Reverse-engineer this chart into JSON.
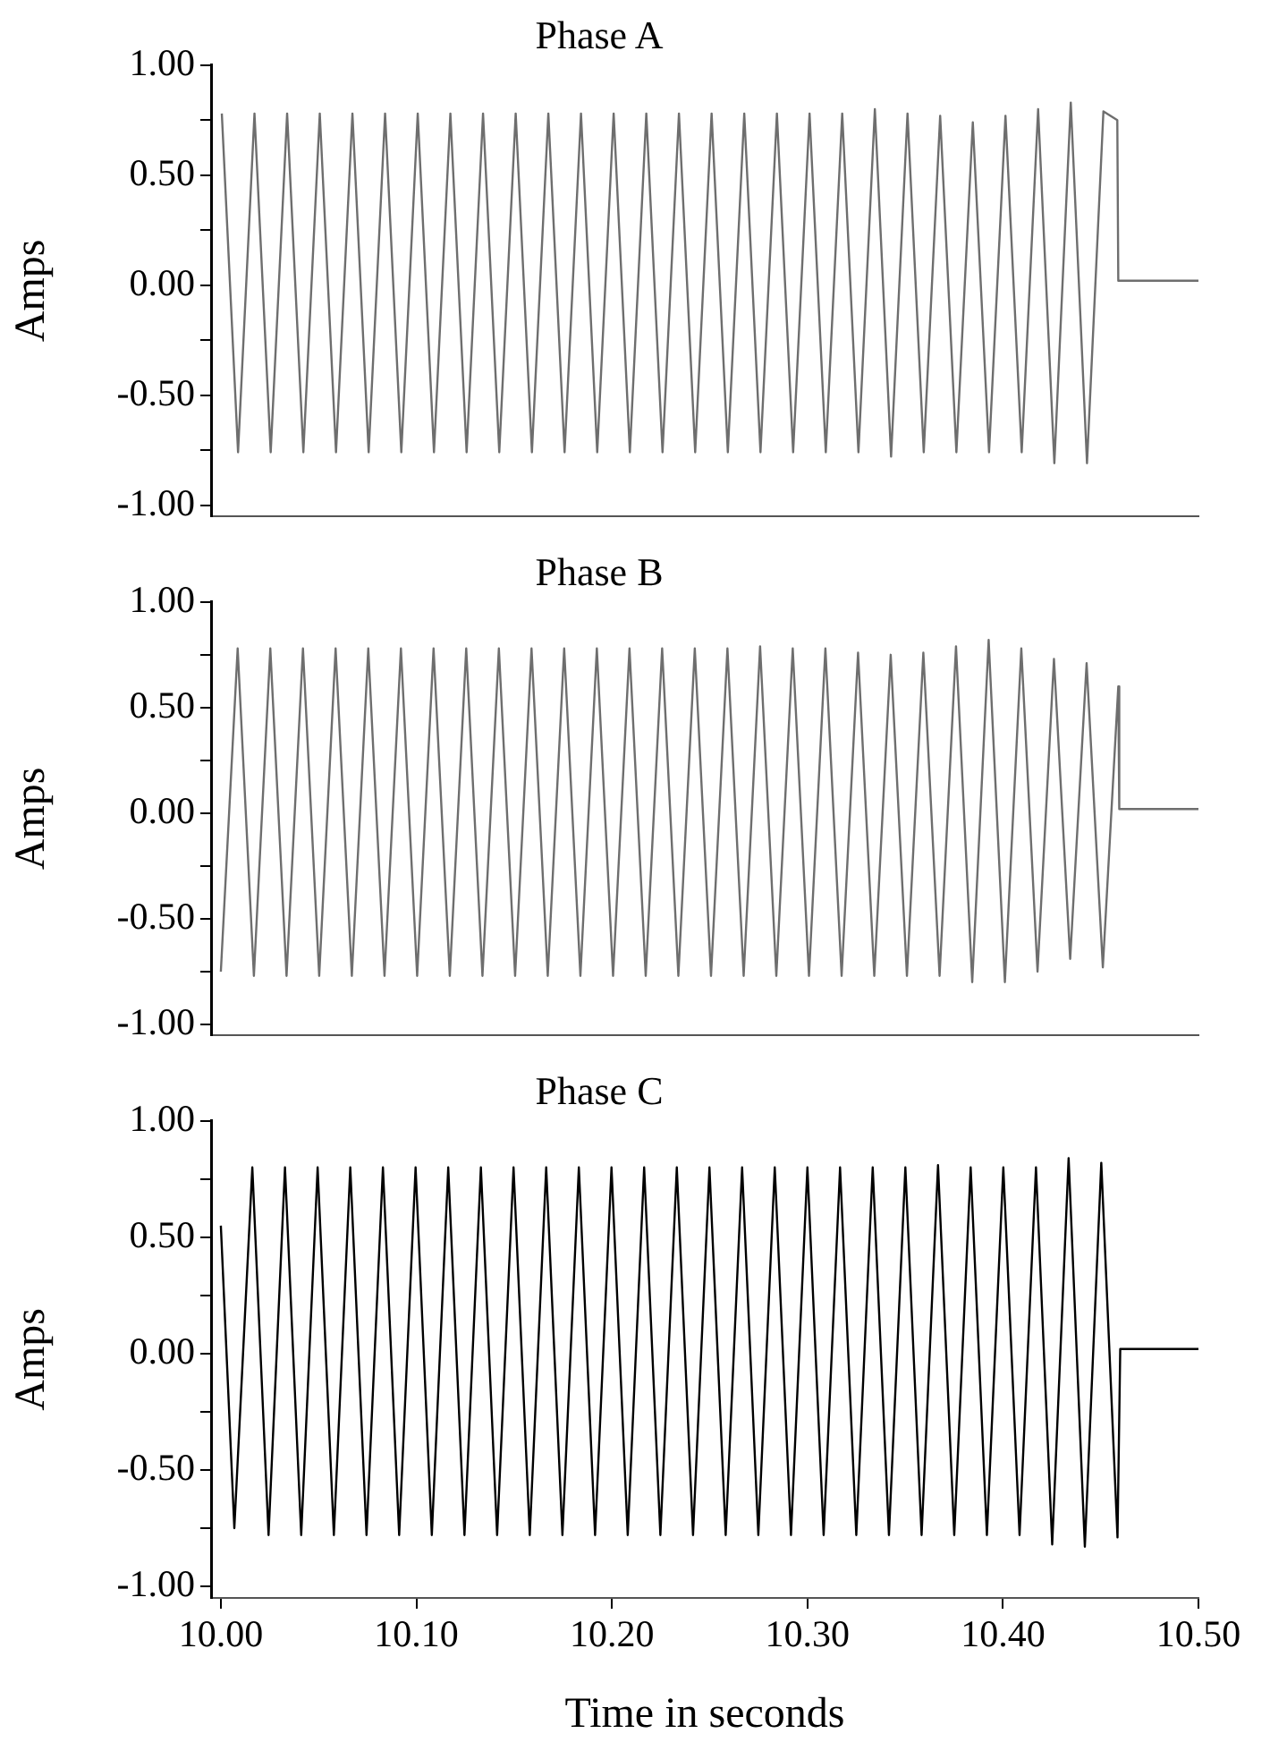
{
  "chart_data": [
    {
      "type": "line",
      "title": "Phase A",
      "ylabel": "Amps",
      "xlim": [
        9.995,
        10.5
      ],
      "ylim": [
        -1.05,
        1.0
      ],
      "yticks": [
        {
          "value": -1,
          "label": "-1.00"
        },
        {
          "value": -0.75,
          "label": null
        },
        {
          "value": -0.5,
          "label": "-0.50"
        },
        {
          "value": -0.25,
          "label": null
        },
        {
          "value": 0,
          "label": "0.00"
        },
        {
          "value": 0.25,
          "label": null
        },
        {
          "value": 0.5,
          "label": "0.50"
        },
        {
          "value": 0.75,
          "label": null
        },
        {
          "value": 1,
          "label": "1.00"
        }
      ],
      "tick_labels": "y",
      "grid": false,
      "legend": false,
      "marker": "none",
      "line_style": "solid",
      "series": [
        {
          "color": "#6e6e6e",
          "x": [
            10.0005,
            10.0088,
            10.0172,
            10.0255,
            10.0339,
            10.0422,
            10.0506,
            10.0589,
            10.0673,
            10.0756,
            10.084,
            10.0923,
            10.1007,
            10.109,
            10.1174,
            10.1257,
            10.1341,
            10.1424,
            10.1508,
            10.1591,
            10.1675,
            10.1758,
            10.1842,
            10.1925,
            10.2009,
            10.2092,
            10.2176,
            10.2259,
            10.2343,
            10.2426,
            10.251,
            10.2593,
            10.2677,
            10.276,
            10.2844,
            10.2927,
            10.3011,
            10.3094,
            10.3178,
            10.3261,
            10.3345,
            10.3428,
            10.3512,
            10.3595,
            10.3679,
            10.3762,
            10.3846,
            10.3929,
            10.4013,
            10.4096,
            10.418,
            10.4263,
            10.4347,
            10.443,
            10.4514,
            10.4585,
            10.459,
            10.5
          ],
          "values": [
            0.78,
            -0.76,
            0.78,
            -0.76,
            0.78,
            -0.76,
            0.78,
            -0.76,
            0.78,
            -0.76,
            0.78,
            -0.76,
            0.78,
            -0.76,
            0.78,
            -0.76,
            0.78,
            -0.76,
            0.78,
            -0.76,
            0.78,
            -0.76,
            0.78,
            -0.76,
            0.78,
            -0.76,
            0.78,
            -0.76,
            0.78,
            -0.76,
            0.78,
            -0.76,
            0.78,
            -0.76,
            0.78,
            -0.76,
            0.78,
            -0.76,
            0.78,
            -0.76,
            0.8,
            -0.78,
            0.78,
            -0.76,
            0.77,
            -0.76,
            0.74,
            -0.76,
            0.77,
            -0.76,
            0.8,
            -0.81,
            0.83,
            -0.81,
            0.79,
            0.75,
            0.02,
            0.02
          ]
        }
      ]
    },
    {
      "type": "line",
      "title": "Phase B",
      "ylabel": "Amps",
      "xlim": [
        9.995,
        10.5
      ],
      "ylim": [
        -1.05,
        1.0
      ],
      "yticks": [
        {
          "value": -1,
          "label": "-1.00"
        },
        {
          "value": -0.75,
          "label": null
        },
        {
          "value": -0.5,
          "label": "-0.50"
        },
        {
          "value": -0.25,
          "label": null
        },
        {
          "value": 0,
          "label": "0.00"
        },
        {
          "value": 0.25,
          "label": null
        },
        {
          "value": 0.5,
          "label": "0.50"
        },
        {
          "value": 0.75,
          "label": null
        },
        {
          "value": 1,
          "label": "1.00"
        }
      ],
      "tick_labels": "y",
      "grid": false,
      "legend": false,
      "marker": "none",
      "line_style": "solid",
      "series": [
        {
          "color": "#6e6e6e",
          "x": [
            10.0,
            10.0086,
            10.0169,
            10.0253,
            10.0336,
            10.042,
            10.0503,
            10.0587,
            10.067,
            10.0754,
            10.0837,
            10.0921,
            10.1004,
            10.1088,
            10.1171,
            10.1255,
            10.1338,
            10.1422,
            10.1505,
            10.1589,
            10.1672,
            10.1756,
            10.1839,
            10.1923,
            10.2006,
            10.209,
            10.2173,
            10.2257,
            10.234,
            10.2424,
            10.2507,
            10.2591,
            10.2674,
            10.2758,
            10.2841,
            10.2925,
            10.3008,
            10.3092,
            10.3175,
            10.3259,
            10.3342,
            10.3426,
            10.3509,
            10.3593,
            10.3676,
            10.376,
            10.3843,
            10.3927,
            10.401,
            10.4094,
            10.4177,
            10.4261,
            10.4344,
            10.4428,
            10.4511,
            10.459,
            10.4595,
            10.5
          ],
          "values": [
            -0.75,
            0.78,
            -0.77,
            0.78,
            -0.77,
            0.78,
            -0.77,
            0.78,
            -0.77,
            0.78,
            -0.77,
            0.78,
            -0.77,
            0.78,
            -0.77,
            0.78,
            -0.77,
            0.78,
            -0.77,
            0.78,
            -0.77,
            0.78,
            -0.77,
            0.78,
            -0.77,
            0.78,
            -0.77,
            0.78,
            -0.77,
            0.78,
            -0.77,
            0.78,
            -0.77,
            0.79,
            -0.77,
            0.78,
            -0.77,
            0.78,
            -0.77,
            0.76,
            -0.77,
            0.75,
            -0.77,
            0.76,
            -0.77,
            0.79,
            -0.8,
            0.82,
            -0.8,
            0.78,
            -0.75,
            0.73,
            -0.69,
            0.71,
            -0.73,
            0.6,
            0.02,
            0.02
          ]
        }
      ]
    },
    {
      "type": "line",
      "title": "Phase C",
      "xlabel": "Time in seconds",
      "ylabel": "Amps",
      "xlim": [
        9.995,
        10.5
      ],
      "ylim": [
        -1.05,
        1.0
      ],
      "xticks": [
        {
          "value": 10.0,
          "label": "10.00"
        },
        {
          "value": 10.1,
          "label": "10.10"
        },
        {
          "value": 10.2,
          "label": "10.20"
        },
        {
          "value": 10.3,
          "label": "10.30"
        },
        {
          "value": 10.4,
          "label": "10.40"
        },
        {
          "value": 10.5,
          "label": "10.50"
        }
      ],
      "yticks": [
        {
          "value": -1,
          "label": "-1.00"
        },
        {
          "value": -0.75,
          "label": null
        },
        {
          "value": -0.5,
          "label": "-0.50"
        },
        {
          "value": -0.25,
          "label": null
        },
        {
          "value": 0,
          "label": "0.00"
        },
        {
          "value": 0.25,
          "label": null
        },
        {
          "value": 0.5,
          "label": "0.50"
        },
        {
          "value": 0.75,
          "label": null
        },
        {
          "value": 1,
          "label": "1.00"
        }
      ],
      "grid": false,
      "legend": false,
      "marker": "none",
      "line_style": "solid",
      "series": [
        {
          "color": "#000000",
          "x": [
            10.0,
            10.0069,
            10.0161,
            10.0244,
            10.0328,
            10.0411,
            10.0495,
            10.0578,
            10.0662,
            10.0745,
            10.0829,
            10.0912,
            10.0996,
            10.1079,
            10.1163,
            10.1246,
            10.133,
            10.1413,
            10.1497,
            10.158,
            10.1664,
            10.1747,
            10.1831,
            10.1914,
            10.1998,
            10.2081,
            10.2165,
            10.2248,
            10.2332,
            10.2415,
            10.2499,
            10.2582,
            10.2666,
            10.2749,
            10.2833,
            10.2916,
            10.3,
            10.3083,
            10.3167,
            10.325,
            10.3334,
            10.3417,
            10.3501,
            10.3584,
            10.3668,
            10.3751,
            10.3835,
            10.3918,
            10.4002,
            10.4085,
            10.4169,
            10.4252,
            10.4336,
            10.4419,
            10.4503,
            10.4586,
            10.46,
            10.5
          ],
          "values": [
            0.55,
            -0.75,
            0.8,
            -0.78,
            0.8,
            -0.78,
            0.8,
            -0.78,
            0.8,
            -0.78,
            0.8,
            -0.78,
            0.8,
            -0.78,
            0.8,
            -0.78,
            0.8,
            -0.78,
            0.8,
            -0.78,
            0.8,
            -0.78,
            0.8,
            -0.78,
            0.8,
            -0.78,
            0.8,
            -0.78,
            0.8,
            -0.78,
            0.8,
            -0.78,
            0.8,
            -0.78,
            0.8,
            -0.78,
            0.8,
            -0.78,
            0.8,
            -0.78,
            0.8,
            -0.78,
            0.8,
            -0.78,
            0.81,
            -0.78,
            0.8,
            -0.78,
            0.8,
            -0.78,
            0.8,
            -0.82,
            0.84,
            -0.83,
            0.82,
            -0.79,
            0.02,
            0.02
          ]
        }
      ]
    }
  ]
}
